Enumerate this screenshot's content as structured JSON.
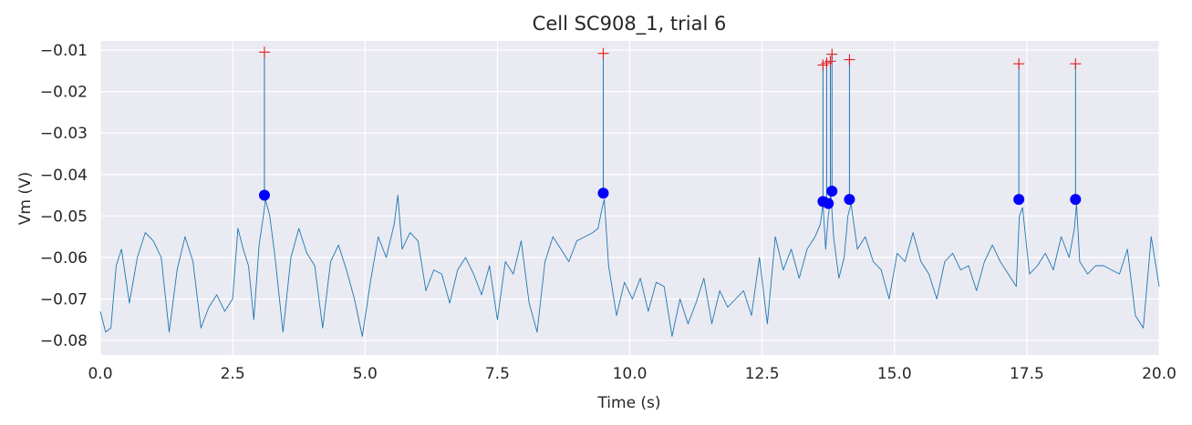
{
  "chart_data": {
    "type": "line",
    "title": "Cell SC908_1,  trial 6",
    "xlabel": "Time (s)",
    "ylabel": "Vm (V)",
    "xlim": [
      0,
      20
    ],
    "ylim": [
      -0.0835,
      -0.0078
    ],
    "x_ticks": [
      0,
      2.5,
      5,
      7.5,
      10,
      12.5,
      15,
      17.5,
      20
    ],
    "x_tick_labels": [
      "0.0",
      "2.5",
      "5.0",
      "7.5",
      "10.0",
      "12.5",
      "15.0",
      "17.5",
      "20.0"
    ],
    "y_ticks": [
      -0.01,
      -0.02,
      -0.03,
      -0.04,
      -0.05,
      -0.06,
      -0.07,
      -0.08
    ],
    "y_tick_labels": [
      "−0.01",
      "−0.02",
      "−0.03",
      "−0.04",
      "−0.05",
      "−0.06",
      "−0.07",
      "−0.08"
    ],
    "grid": true,
    "background": "#eaeaf2",
    "series": [
      {
        "type": "line",
        "color": "#1f77b4",
        "x": [
          0.0,
          0.1,
          0.2,
          0.3,
          0.4,
          0.55,
          0.7,
          0.85,
          1.0,
          1.15,
          1.3,
          1.45,
          1.6,
          1.75,
          1.9,
          2.05,
          2.2,
          2.35,
          2.5,
          2.6,
          2.7,
          2.8,
          2.9,
          3.0,
          3.08,
          3.12,
          3.2,
          3.3,
          3.45,
          3.6,
          3.75,
          3.9,
          4.05,
          4.2,
          4.35,
          4.5,
          4.65,
          4.8,
          4.95,
          5.1,
          5.25,
          5.4,
          5.55,
          5.62,
          5.7,
          5.85,
          6.0,
          6.15,
          6.3,
          6.45,
          6.6,
          6.75,
          6.9,
          7.05,
          7.2,
          7.35,
          7.5,
          7.65,
          7.8,
          7.95,
          8.1,
          8.25,
          8.4,
          8.55,
          8.7,
          8.85,
          9.0,
          9.15,
          9.3,
          9.4,
          9.48,
          9.52,
          9.6,
          9.75,
          9.9,
          10.05,
          10.2,
          10.35,
          10.5,
          10.65,
          10.8,
          10.95,
          11.1,
          11.25,
          11.4,
          11.55,
          11.7,
          11.85,
          12.0,
          12.15,
          12.3,
          12.45,
          12.6,
          12.75,
          12.9,
          13.05,
          13.2,
          13.35,
          13.5,
          13.6,
          13.65,
          13.7,
          13.75,
          13.8,
          13.85,
          13.95,
          14.05,
          14.12,
          14.18,
          14.3,
          14.45,
          14.6,
          14.75,
          14.9,
          15.05,
          15.2,
          15.35,
          15.5,
          15.65,
          15.8,
          15.95,
          16.1,
          16.25,
          16.4,
          16.55,
          16.7,
          16.85,
          17.0,
          17.15,
          17.3,
          17.36,
          17.42,
          17.55,
          17.7,
          17.85,
          18.0,
          18.15,
          18.3,
          18.4,
          18.44,
          18.5,
          18.65,
          18.8,
          18.95,
          19.1,
          19.25,
          19.4,
          19.55,
          19.7,
          19.85,
          20.0
        ],
        "y": [
          -0.073,
          -0.078,
          -0.077,
          -0.062,
          -0.058,
          -0.071,
          -0.06,
          -0.054,
          -0.056,
          -0.06,
          -0.078,
          -0.063,
          -0.055,
          -0.061,
          -0.077,
          -0.072,
          -0.069,
          -0.073,
          -0.07,
          -0.053,
          -0.058,
          -0.062,
          -0.075,
          -0.057,
          -0.05,
          -0.046,
          -0.05,
          -0.06,
          -0.078,
          -0.06,
          -0.053,
          -0.059,
          -0.062,
          -0.077,
          -0.061,
          -0.057,
          -0.063,
          -0.07,
          -0.079,
          -0.066,
          -0.055,
          -0.06,
          -0.052,
          -0.045,
          -0.058,
          -0.054,
          -0.056,
          -0.068,
          -0.063,
          -0.064,
          -0.071,
          -0.063,
          -0.06,
          -0.064,
          -0.069,
          -0.062,
          -0.075,
          -0.061,
          -0.064,
          -0.056,
          -0.071,
          -0.078,
          -0.061,
          -0.055,
          -0.058,
          -0.061,
          -0.056,
          -0.055,
          -0.054,
          -0.053,
          -0.048,
          -0.046,
          -0.062,
          -0.074,
          -0.066,
          -0.07,
          -0.065,
          -0.073,
          -0.066,
          -0.067,
          -0.079,
          -0.07,
          -0.076,
          -0.071,
          -0.065,
          -0.076,
          -0.068,
          -0.072,
          -0.07,
          -0.068,
          -0.074,
          -0.06,
          -0.076,
          -0.055,
          -0.063,
          -0.058,
          -0.065,
          -0.058,
          -0.055,
          -0.052,
          -0.047,
          -0.058,
          -0.05,
          -0.045,
          -0.055,
          -0.065,
          -0.06,
          -0.05,
          -0.047,
          -0.058,
          -0.055,
          -0.061,
          -0.063,
          -0.07,
          -0.059,
          -0.061,
          -0.054,
          -0.061,
          -0.064,
          -0.07,
          -0.061,
          -0.059,
          -0.063,
          -0.062,
          -0.068,
          -0.061,
          -0.057,
          -0.061,
          -0.064,
          -0.067,
          -0.05,
          -0.048,
          -0.064,
          -0.062,
          -0.059,
          -0.063,
          -0.055,
          -0.06,
          -0.053,
          -0.047,
          -0.061,
          -0.064,
          -0.062,
          -0.062,
          -0.063,
          -0.064,
          -0.058,
          -0.074,
          -0.077,
          -0.055,
          -0.067
        ]
      },
      {
        "type": "spikes",
        "color": "#1f77b4",
        "x": [
          3.1,
          9.5,
          13.65,
          13.72,
          13.79,
          13.82,
          14.15,
          17.35,
          18.42
        ],
        "y_base": [
          -0.045,
          -0.0445,
          -0.0465,
          -0.0465,
          -0.047,
          -0.044,
          -0.046,
          -0.046,
          -0.046
        ],
        "y_peak": [
          -0.0105,
          -0.0108,
          -0.0136,
          -0.0131,
          -0.0127,
          -0.011,
          -0.0123,
          -0.0133,
          -0.0133
        ]
      },
      {
        "type": "scatter",
        "marker": "+",
        "color": "#e41a1c",
        "x": [
          3.1,
          9.5,
          13.65,
          13.72,
          13.79,
          13.82,
          14.15,
          17.35,
          18.42
        ],
        "y": [
          -0.0105,
          -0.0108,
          -0.0136,
          -0.0131,
          -0.0127,
          -0.011,
          -0.0123,
          -0.0133,
          -0.0133
        ]
      },
      {
        "type": "scatter",
        "marker": "o",
        "color": "#0000ff",
        "x": [
          3.1,
          9.5,
          13.65,
          13.75,
          13.82,
          14.15,
          17.35,
          18.42
        ],
        "y": [
          -0.045,
          -0.0445,
          -0.0465,
          -0.047,
          -0.044,
          -0.046,
          -0.046,
          -0.046
        ]
      }
    ]
  }
}
